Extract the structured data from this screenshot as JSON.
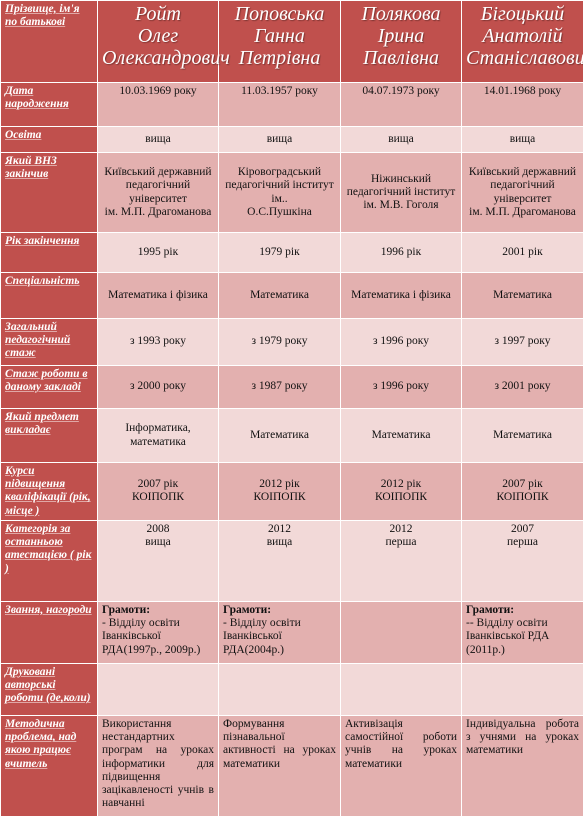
{
  "header": {
    "corner": "Прізвище, ім'я по батькові",
    "names": [
      [
        "Ройт",
        "Олег",
        "Олександрович"
      ],
      [
        "Поповська",
        "Ганна",
        "Петрівна"
      ],
      [
        "Полякова",
        "Ірина",
        "Павлівна"
      ],
      [
        "Бігоцький",
        "Анатолій",
        "Станіславович"
      ]
    ]
  },
  "table": {
    "rows": [
      {
        "label": "Дата народження",
        "cells": [
          [
            "10.03.1969 року"
          ],
          [
            "11.03.1957 року"
          ],
          [
            "04.07.1973 року"
          ],
          [
            "14.01.1968 року"
          ]
        ]
      },
      {
        "label": "Освіта",
        "cells": [
          [
            "вища"
          ],
          [
            "вища"
          ],
          [
            "вища"
          ],
          [
            "вища"
          ]
        ]
      },
      {
        "label": "Який ВНЗ закінчив",
        "cells": [
          [
            "Київський державний педагогічний університет",
            "ім. М.П. Драгоманова"
          ],
          [
            "Кіровоградський педагогічний інститут ім..",
            "О.С.Пушкіна"
          ],
          [
            "Ніжинський педагогічний інститут",
            "ім. М.В. Гоголя"
          ],
          [
            "Київський державний педагогічний університет",
            "ім. М.П. Драгоманова"
          ]
        ]
      },
      {
        "label": "Рік закінчення",
        "cells": [
          [
            "1995 рік"
          ],
          [
            "1979 рік"
          ],
          [
            "1996 рік"
          ],
          [
            "2001 рік"
          ]
        ]
      },
      {
        "label": "Спеціальність",
        "cells": [
          [
            "Математика і фізика"
          ],
          [
            "Математика"
          ],
          [
            "Математика і фізика"
          ],
          [
            "Математика"
          ]
        ]
      },
      {
        "label": "Загальний педагогічний стаж",
        "cells": [
          [
            "з 1993 року"
          ],
          [
            "з 1979 року"
          ],
          [
            "з 1996 року"
          ],
          [
            "з 1997 року"
          ]
        ]
      },
      {
        "label": "Стаж роботи в даному закладі",
        "cells": [
          [
            "з 2000 року"
          ],
          [
            "з 1987 року"
          ],
          [
            "з 1996 року"
          ],
          [
            "з 2001 року"
          ]
        ]
      },
      {
        "label": "Який предмет викладає",
        "cells": [
          [
            "Інформатика,",
            "математика"
          ],
          [
            "Математика"
          ],
          [
            "Математика"
          ],
          [
            "Математика"
          ]
        ]
      },
      {
        "label": "Курси підвищення кваліфікації (рік, місце )",
        "cells": [
          [
            "2007 рік",
            "КОІПОПК"
          ],
          [
            "2012 рік",
            "КОІПОПК"
          ],
          [
            "2012 рік",
            "КОІПОПК"
          ],
          [
            "2007 рік",
            "КОІПОПК"
          ]
        ]
      },
      {
        "label": "Категорія за останньою атестацією ( рік )",
        "cells": [
          [
            "2008",
            "вища"
          ],
          [
            "2012",
            "вища"
          ],
          [
            "2012",
            "перша"
          ],
          [
            "2007",
            "перша"
          ]
        ]
      },
      {
        "label": "Звання, нагороди",
        "cells": [
          [
            "Грамоти:",
            "- Відділу освіти Іванківської РДА(1997р., 2009р.)"
          ],
          [
            "Грамоти:",
            "- Відділу освіти Іванківської РДА(2004р.)"
          ],
          null,
          [
            "Грамоти:",
            "-- Відділу освіти Іванківської РДА (2011р.)"
          ]
        ]
      },
      {
        "label": "Друковані авторські роботи (де,коли)",
        "cells": [
          null,
          null,
          null,
          null
        ]
      },
      {
        "label": "Методична проблема, над якою працює вчитель",
        "cells": [
          [
            "Використання нестандартних програм на уроках інформатики для підвищення зацікавленості учнів в навчанні"
          ],
          [
            "Формування пізнавальної активності на уроках математики"
          ],
          [
            "Активізація самостійної роботи учнів на уроках математики"
          ],
          [
            "Індивідуальна робота з учнями на уроках математики"
          ]
        ]
      }
    ]
  }
}
